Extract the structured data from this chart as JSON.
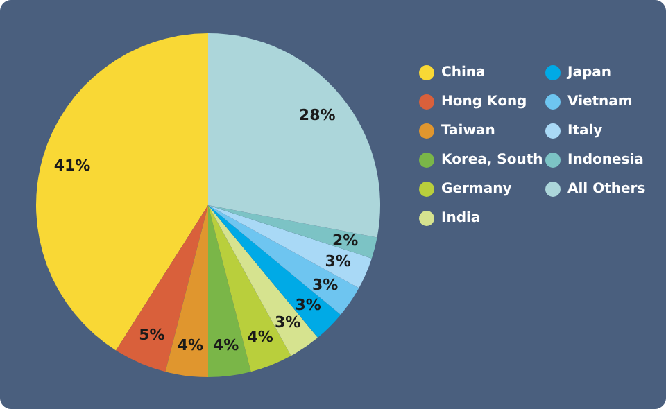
{
  "chart_data": {
    "type": "pie",
    "categories": [
      "China",
      "Hong Kong",
      "Taiwan",
      "Korea, South",
      "Germany",
      "India",
      "Japan",
      "Vietnam",
      "Italy",
      "Indonesia",
      "All Others"
    ],
    "values": [
      41,
      5,
      4,
      4,
      4,
      3,
      3,
      3,
      3,
      2,
      28
    ],
    "value_labels": [
      "41%",
      "5%",
      "4%",
      "4%",
      "4%",
      "3%",
      "3%",
      "3%",
      "3%",
      "2%",
      "28%"
    ],
    "colors": [
      "#f9d835",
      "#d9603b",
      "#e0962e",
      "#7ab648",
      "#b9cf3c",
      "#d6e38f",
      "#00aae6",
      "#6ec5f0",
      "#a9d9f6",
      "#7cc3c5",
      "#acd6da"
    ],
    "legend": "right"
  }
}
